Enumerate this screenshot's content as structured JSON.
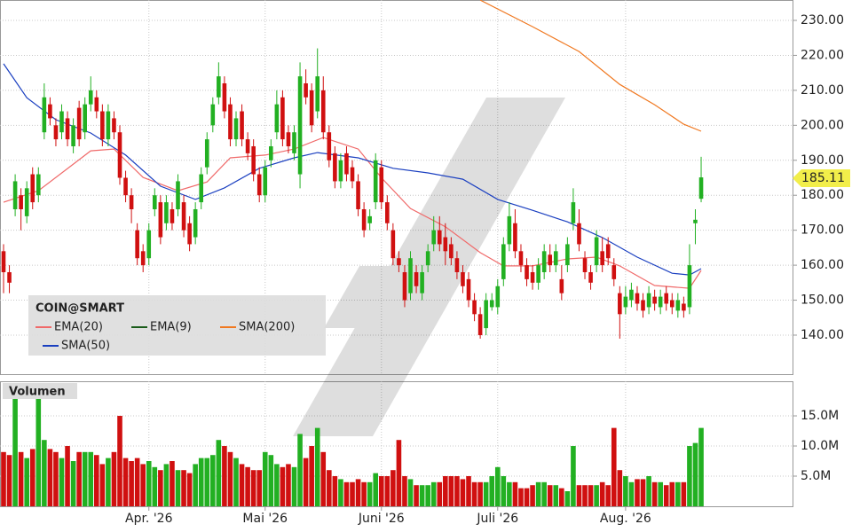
{
  "chart_data": {
    "type": "candlestick",
    "title": "COIN@SMART",
    "open": [
      164,
      158,
      176,
      180,
      174,
      186,
      180,
      198,
      206,
      200,
      198,
      202,
      194,
      205,
      198,
      206,
      208,
      204,
      196,
      202,
      198,
      185,
      180,
      170,
      164,
      162,
      176,
      178,
      172,
      176,
      176,
      178,
      172,
      168,
      178,
      188,
      200,
      208,
      212,
      206,
      196,
      204,
      196,
      194,
      186,
      180,
      190,
      198,
      208,
      198,
      192,
      186,
      212,
      210,
      204,
      210,
      198,
      192,
      184,
      192,
      188,
      184,
      176,
      172,
      178,
      188,
      178,
      170,
      162,
      158,
      152,
      158,
      152,
      160,
      166,
      170,
      168,
      166,
      162,
      158,
      156,
      150,
      146,
      142,
      148,
      148,
      156,
      166,
      172,
      164,
      160,
      158,
      155,
      158,
      163,
      160,
      156,
      160,
      172,
      172,
      162,
      158,
      160,
      164,
      166,
      160,
      152,
      148,
      150,
      152,
      150,
      148,
      151,
      148,
      152,
      150,
      147,
      149,
      148,
      172,
      179
    ],
    "high": [
      166,
      160,
      186,
      182,
      184,
      188,
      188,
      212,
      208,
      202,
      206,
      204,
      202,
      207,
      208,
      214,
      210,
      206,
      206,
      204,
      200,
      187,
      182,
      172,
      166,
      172,
      182,
      180,
      180,
      178,
      186,
      180,
      174,
      178,
      188,
      198,
      208,
      218,
      214,
      208,
      204,
      206,
      198,
      196,
      188,
      190,
      196,
      210,
      210,
      200,
      200,
      218,
      216,
      212,
      222,
      214,
      200,
      194,
      192,
      194,
      190,
      186,
      178,
      176,
      192,
      190,
      180,
      172,
      164,
      160,
      164,
      160,
      160,
      166,
      174,
      174,
      172,
      168,
      164,
      160,
      158,
      152,
      148,
      152,
      152,
      156,
      168,
      178,
      176,
      166,
      162,
      160,
      162,
      166,
      166,
      166,
      160,
      168,
      182,
      176,
      164,
      160,
      170,
      168,
      168,
      162,
      154,
      154,
      155,
      154,
      152,
      154,
      153,
      153,
      154,
      152,
      152,
      151,
      166,
      176,
      191
    ],
    "low": [
      152,
      152,
      174,
      170,
      172,
      176,
      178,
      196,
      200,
      194,
      196,
      194,
      192,
      194,
      196,
      204,
      202,
      194,
      194,
      196,
      183,
      178,
      172,
      160,
      158,
      160,
      174,
      166,
      170,
      170,
      174,
      168,
      164,
      166,
      176,
      186,
      198,
      206,
      202,
      194,
      194,
      194,
      190,
      184,
      178,
      178,
      188,
      196,
      194,
      192,
      190,
      182,
      206,
      198,
      202,
      196,
      188,
      182,
      182,
      184,
      182,
      174,
      168,
      170,
      176,
      176,
      170,
      160,
      158,
      148,
      150,
      152,
      150,
      158,
      164,
      164,
      160,
      160,
      156,
      152,
      148,
      144,
      139,
      140,
      147,
      146,
      154,
      164,
      162,
      158,
      154,
      153,
      153,
      156,
      158,
      158,
      150,
      158,
      170,
      164,
      156,
      153,
      158,
      158,
      160,
      154,
      139,
      146,
      148,
      147,
      145,
      146,
      147,
      146,
      147,
      146,
      145,
      145,
      146,
      166,
      178
    ],
    "close": [
      158,
      155,
      184,
      176,
      182,
      178,
      186,
      208,
      202,
      196,
      204,
      196,
      200,
      196,
      206,
      210,
      204,
      196,
      204,
      198,
      185,
      180,
      176,
      162,
      160,
      170,
      180,
      168,
      178,
      172,
      184,
      170,
      166,
      176,
      186,
      196,
      206,
      214,
      204,
      196,
      202,
      196,
      192,
      186,
      180,
      188,
      194,
      206,
      196,
      194,
      198,
      214,
      208,
      200,
      214,
      198,
      190,
      184,
      190,
      186,
      184,
      176,
      170,
      174,
      190,
      178,
      172,
      162,
      160,
      150,
      162,
      154,
      158,
      164,
      170,
      166,
      164,
      162,
      158,
      154,
      150,
      146,
      140,
      150,
      150,
      154,
      166,
      174,
      164,
      160,
      156,
      155,
      160,
      164,
      160,
      164,
      152,
      166,
      178,
      166,
      158,
      155,
      168,
      160,
      162,
      156,
      146,
      151,
      153,
      149,
      147,
      152,
      149,
      151,
      149,
      148,
      150,
      147,
      160,
      173,
      185.11
    ],
    "up_color": "#22b022",
    "down_color": "#d01010",
    "xlim": [
      -0.61,
      135.72
    ],
    "xticks": [
      {
        "value": 25,
        "label": "Apr. '26"
      },
      {
        "value": 45,
        "label": "Mai '26"
      },
      {
        "value": 65,
        "label": "Juni '26"
      },
      {
        "value": 85,
        "label": "Juli '26"
      },
      {
        "value": 107,
        "label": "Aug. '26"
      }
    ],
    "ylim": [
      128.84,
      235.83
    ],
    "yticks": [
      {
        "value": 140,
        "label": "140.00"
      },
      {
        "value": 150,
        "label": "150.00"
      },
      {
        "value": 160,
        "label": "160.00"
      },
      {
        "value": 170,
        "label": "170.00"
      },
      {
        "value": 180,
        "label": "180.00"
      },
      {
        "value": 190,
        "label": "190.00"
      },
      {
        "value": 200,
        "label": "200.00"
      },
      {
        "value": 210,
        "label": "210.00"
      },
      {
        "value": 220,
        "label": "220.00"
      },
      {
        "value": 230,
        "label": "230.00"
      }
    ],
    "grid": true,
    "indicators": [
      {
        "name": "EMA(20)",
        "color": "#f06a6a",
        "x": [
          0,
          6,
          12,
          15,
          19,
          24,
          30,
          35,
          39,
          45,
          50,
          55,
          61,
          65,
          70,
          76,
          82,
          86,
          91,
          97,
          102,
          106,
          112,
          118,
          120
        ],
        "values": [
          178,
          181.3,
          188.9,
          192.7,
          193.2,
          185.1,
          181.3,
          183.8,
          190.7,
          191.5,
          193.2,
          196.5,
          193.2,
          185,
          176.2,
          171,
          163.6,
          159.8,
          159.8,
          161.8,
          162.3,
          159.8,
          154.2,
          153.4,
          158.5
        ]
      },
      {
        "name": "EMA(9)",
        "color": "#1a5c1a",
        "shown": false
      },
      {
        "name": "SMA(200)",
        "color": "#f07820",
        "x": [
          82,
          91,
          99,
          106,
          112,
          117,
          120
        ],
        "values": [
          235.8,
          228.2,
          221.1,
          211.7,
          205.9,
          200.3,
          198.3
        ]
      },
      {
        "name": "SMA(50)",
        "color": "#1a3fc0",
        "x": [
          0,
          4,
          9,
          15,
          21,
          27,
          33,
          38,
          44,
          50,
          54,
          61,
          67,
          73,
          79,
          85,
          91,
          97,
          103,
          109,
          115,
          118,
          120
        ],
        "values": [
          217.6,
          207.9,
          201.6,
          197.8,
          191.5,
          182.6,
          178.8,
          182.1,
          187.7,
          190.7,
          192.2,
          190.7,
          187.7,
          186.4,
          184.6,
          178.8,
          175.7,
          172.4,
          167.9,
          162.3,
          157.7,
          157.2,
          159
        ]
      }
    ],
    "volume": {
      "title": "Volumen",
      "values": [
        9,
        8.5,
        18,
        9,
        8,
        9.5,
        20,
        11,
        9.5,
        9,
        8,
        10,
        7.5,
        9,
        9,
        9,
        8.5,
        7,
        8,
        9,
        15,
        8,
        7.5,
        8,
        7,
        7.5,
        6.5,
        6,
        7,
        7.5,
        6,
        6,
        5.5,
        7,
        8,
        8,
        8.5,
        11,
        10,
        9,
        8,
        7,
        6.5,
        6,
        6,
        9,
        8.5,
        7,
        6.5,
        7,
        6.5,
        12,
        8,
        10,
        13,
        9,
        6,
        5,
        4.5,
        4,
        4,
        4.5,
        4,
        4,
        5.5,
        5,
        5,
        6,
        11,
        5,
        4.5,
        3.5,
        3.5,
        3.5,
        4,
        4,
        5,
        5,
        5,
        4.5,
        5,
        4,
        4,
        4,
        5,
        6.5,
        5,
        4,
        4,
        3,
        3,
        3.5,
        4,
        4,
        3.5,
        3.5,
        3,
        2.5,
        10,
        3.5,
        3.5,
        3.5,
        3.5,
        4,
        3.5,
        13,
        6,
        5,
        4,
        4.5,
        4.5,
        5,
        4,
        4,
        3.5,
        4,
        4,
        4,
        10,
        10.5,
        13
      ],
      "ylim": [
        0,
        20.74
      ],
      "yticks": [
        {
          "value": 5,
          "label": "5.0M"
        },
        {
          "value": 10,
          "label": "10.0M"
        },
        {
          "value": 15,
          "label": "15.0M"
        }
      ]
    }
  }
}
